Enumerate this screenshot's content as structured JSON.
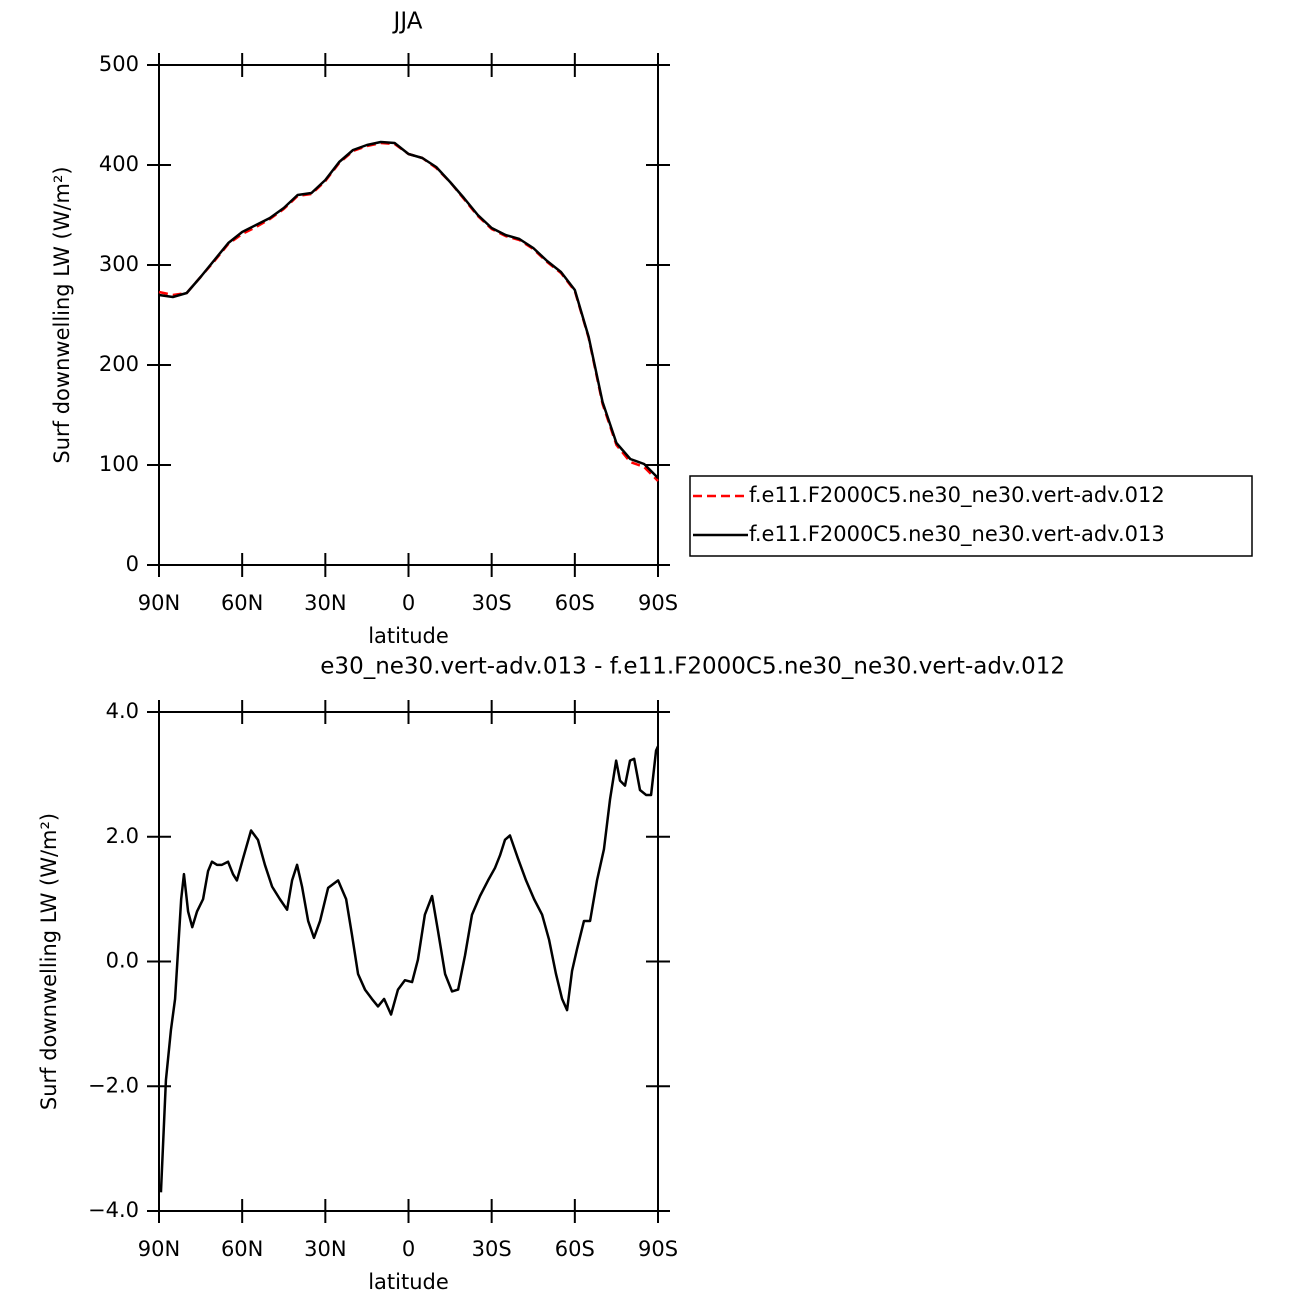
{
  "chart_data": [
    {
      "type": "line",
      "title": "JJA",
      "x_label": "latitude",
      "y_label": "Surf downwelling LW (W/m²)",
      "xlim": [
        90,
        -90
      ],
      "xticks": [
        {
          "value": 90,
          "label": "90N"
        },
        {
          "value": 60,
          "label": "60N"
        },
        {
          "value": 30,
          "label": "30N"
        },
        0,
        {
          "value": -30,
          "label": "30S"
        },
        {
          "value": -60,
          "label": "60S"
        },
        {
          "value": -90,
          "label": "90S"
        }
      ],
      "ylim": [
        0,
        500
      ],
      "yticks": [
        0,
        100,
        200,
        300,
        400,
        500
      ],
      "legend": "outside-right",
      "x": [
        90,
        85,
        80,
        75,
        70,
        65,
        60,
        55,
        50,
        45,
        40,
        35,
        30,
        25,
        20,
        15,
        10,
        5,
        0,
        -5,
        -10,
        -15,
        -20,
        -25,
        -30,
        -35,
        -40,
        -45,
        -50,
        -55,
        -60,
        -65,
        -70,
        -75,
        -80,
        -85,
        -90
      ],
      "series": [
        {
          "name": "f.e11.F2000C5.ne30_ne30.vert-adv.012",
          "color": "#ff0000",
          "dashed": true,
          "values": [
            273,
            270,
            272,
            288,
            304,
            321,
            331,
            338,
            346,
            356,
            369,
            371,
            384,
            402,
            414,
            419,
            422,
            421,
            411,
            407,
            397,
            383,
            366,
            349,
            336,
            329,
            325,
            316,
            303,
            292,
            274,
            227,
            161,
            120,
            103,
            98,
            84
          ]
        },
        {
          "name": "f.e11.F2000C5.ne30_ne30.vert-adv.013",
          "color": "#000000",
          "dashed": false,
          "values": [
            270,
            268,
            272,
            288,
            305,
            322,
            333,
            340,
            347,
            357,
            370,
            372,
            385,
            403,
            415,
            420,
            423,
            422,
            411,
            407,
            398,
            383,
            367,
            350,
            337,
            330,
            326,
            317,
            304,
            293,
            275,
            228,
            163,
            122,
            106,
            101,
            87
          ]
        }
      ]
    },
    {
      "type": "line",
      "title": "e30_ne30.vert-adv.013 - f.e11.F2000C5.ne30_ne30.vert-adv.012",
      "x_label": "latitude",
      "y_label": "Surf downwelling LW (W/m²)",
      "xlim": [
        90,
        -90
      ],
      "xticks": [
        {
          "value": 90,
          "label": "90N"
        },
        {
          "value": 60,
          "label": "60N"
        },
        {
          "value": 30,
          "label": "30N"
        },
        0,
        {
          "value": -30,
          "label": "30S"
        },
        {
          "value": -60,
          "label": "60S"
        },
        {
          "value": -90,
          "label": "90S"
        }
      ],
      "ylim": [
        -4,
        4
      ],
      "yticks": [
        {
          "value": -4,
          "label": "−4.0"
        },
        {
          "value": -2,
          "label": "−2.0"
        },
        {
          "value": 0,
          "label": "0.0"
        },
        {
          "value": 2,
          "label": "2.0"
        },
        {
          "value": 4,
          "label": "4.0"
        }
      ],
      "x": [
        89.3,
        87.5,
        85.7,
        84.2,
        83.1,
        82,
        81,
        79.5,
        78,
        76.3,
        74.1,
        72.3,
        70.9,
        69.1,
        67.3,
        65.1,
        63.3,
        61.9,
        59.7,
        56.8,
        54.3,
        51.8,
        49.2,
        46.4,
        43.8,
        42,
        40.2,
        38.4,
        36.2,
        34.1,
        31.9,
        29,
        25.4,
        22.5,
        20.4,
        18.2,
        15.7,
        13.2,
        11,
        8.8,
        6.3,
        3.8,
        1.3,
        -1.3,
        -3.4,
        -5.9,
        -8.5,
        -10.6,
        -13.2,
        -15.7,
        -17.9,
        -20.4,
        -22.9,
        -25.8,
        -28.7,
        -31.2,
        -33,
        -34.8,
        -36.6,
        -39.5,
        -42.4,
        -45.3,
        -48.2,
        -50.7,
        -53.2,
        -55.4,
        -57.2,
        -59,
        -60.8,
        -63.3,
        -65.5,
        -68,
        -70.5,
        -72.7,
        -74.9,
        -76.3,
        -78.1,
        -79.9,
        -81.4,
        -83.5,
        -85.7,
        -87.5,
        -89.3,
        -90
      ],
      "series": [
        {
          "color": "#000000",
          "dashed": false,
          "values": [
            -3.7,
            -1.9,
            -1.1,
            -0.6,
            0.2,
            1.0,
            1.4,
            0.8,
            0.55,
            0.8,
            1.0,
            1.45,
            1.6,
            1.55,
            1.55,
            1.6,
            1.4,
            1.3,
            1.65,
            2.1,
            1.95,
            1.55,
            1.2,
            1.0,
            0.83,
            1.3,
            1.55,
            1.2,
            0.65,
            0.38,
            0.65,
            1.18,
            1.3,
            1.0,
            0.43,
            -0.2,
            -0.45,
            -0.6,
            -0.72,
            -0.6,
            -0.85,
            -0.45,
            -0.3,
            -0.33,
            0.03,
            0.75,
            1.05,
            0.5,
            -0.2,
            -0.48,
            -0.45,
            0.1,
            0.75,
            1.05,
            1.3,
            1.5,
            1.7,
            1.95,
            2.02,
            1.65,
            1.3,
            1.0,
            0.75,
            0.35,
            -0.2,
            -0.6,
            -0.78,
            -0.15,
            0.2,
            0.65,
            0.65,
            1.3,
            1.8,
            2.6,
            3.22,
            2.9,
            2.82,
            3.22,
            3.25,
            2.75,
            2.67,
            2.67,
            3.38,
            3.45
          ]
        }
      ]
    }
  ]
}
